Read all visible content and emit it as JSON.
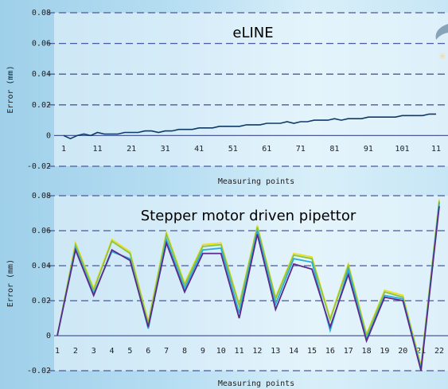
{
  "chart_data": [
    {
      "type": "line",
      "title": "eLINE",
      "xlabel": "Measuring points",
      "ylabel": "Error (mm)",
      "ylim": [
        -0.02,
        0.08
      ],
      "yticks": [
        "0.08",
        "0.06",
        "0.04",
        "0.02",
        "0",
        "-0.02"
      ],
      "xticks": [
        "1",
        "11",
        "21",
        "31",
        "41",
        "51",
        "61",
        "71",
        "81",
        "91",
        "101",
        "11"
      ],
      "xlim": [
        1,
        111
      ],
      "grid": true,
      "colors": {
        "line": "#0d3b66"
      },
      "series": [
        {
          "x": [
            1,
            3,
            5,
            7,
            9,
            11,
            13,
            15,
            17,
            19,
            21,
            23,
            25,
            27,
            29,
            31,
            33,
            35,
            37,
            39,
            41,
            43,
            45,
            47,
            49,
            51,
            53,
            55,
            57,
            59,
            61,
            63,
            65,
            67,
            69,
            71,
            73,
            75,
            77,
            79,
            81,
            83,
            85,
            87,
            89,
            91,
            93,
            95,
            97,
            99,
            101,
            103,
            105,
            107,
            109,
            111
          ],
          "values": [
            0.0,
            -0.002,
            0.0,
            0.001,
            0.0,
            0.002,
            0.001,
            0.001,
            0.001,
            0.002,
            0.002,
            0.002,
            0.003,
            0.003,
            0.002,
            0.003,
            0.003,
            0.004,
            0.004,
            0.004,
            0.005,
            0.005,
            0.005,
            0.006,
            0.006,
            0.006,
            0.006,
            0.007,
            0.007,
            0.007,
            0.008,
            0.008,
            0.008,
            0.009,
            0.008,
            0.009,
            0.009,
            0.01,
            0.01,
            0.01,
            0.011,
            0.01,
            0.011,
            0.011,
            0.011,
            0.012,
            0.012,
            0.012,
            0.012,
            0.012,
            0.013,
            0.013,
            0.013,
            0.013,
            0.014,
            0.014
          ]
        }
      ]
    },
    {
      "type": "line",
      "title": "Stepper motor driven pipettor",
      "xlabel": "Measuring points",
      "ylabel": "Error (mm)",
      "ylim": [
        -0.02,
        0.08
      ],
      "yticks": [
        "0.08",
        "0.06",
        "0.04",
        "0.02",
        "0",
        "-0.02"
      ],
      "categories": [
        "1",
        "2",
        "3",
        "4",
        "5",
        "6",
        "7",
        "8",
        "9",
        "10",
        "11",
        "12",
        "13",
        "14",
        "15",
        "16",
        "17",
        "18",
        "19",
        "20",
        "21",
        "22"
      ],
      "grid": true,
      "series": [
        {
          "color": "#e8e020",
          "values": [
            0,
            0.053,
            0.027,
            0.055,
            0.048,
            0.008,
            0.059,
            0.03,
            0.052,
            0.053,
            0.018,
            0.063,
            0.022,
            0.047,
            0.045,
            0.01,
            0.041,
            0.001,
            0.026,
            0.023,
            -0.017,
            0.078
          ]
        },
        {
          "color": "#8bc34a",
          "values": [
            0,
            0.052,
            0.026,
            0.054,
            0.047,
            0.007,
            0.058,
            0.029,
            0.051,
            0.052,
            0.017,
            0.062,
            0.021,
            0.046,
            0.044,
            0.009,
            0.04,
            0.0,
            0.025,
            0.022,
            -0.018,
            0.077
          ]
        },
        {
          "color": "#2aaed8",
          "values": [
            0,
            0.05,
            0.024,
            0.048,
            0.044,
            0.004,
            0.055,
            0.027,
            0.049,
            0.05,
            0.013,
            0.06,
            0.018,
            0.044,
            0.042,
            0.003,
            0.038,
            -0.002,
            0.023,
            0.021,
            -0.019,
            0.076
          ]
        },
        {
          "color": "#5a2a8a",
          "values": [
            0,
            0.049,
            0.023,
            0.049,
            0.043,
            0.005,
            0.053,
            0.025,
            0.047,
            0.047,
            0.01,
            0.058,
            0.015,
            0.041,
            0.038,
            0.005,
            0.035,
            -0.003,
            0.022,
            0.02,
            -0.02,
            0.074
          ]
        }
      ]
    }
  ]
}
